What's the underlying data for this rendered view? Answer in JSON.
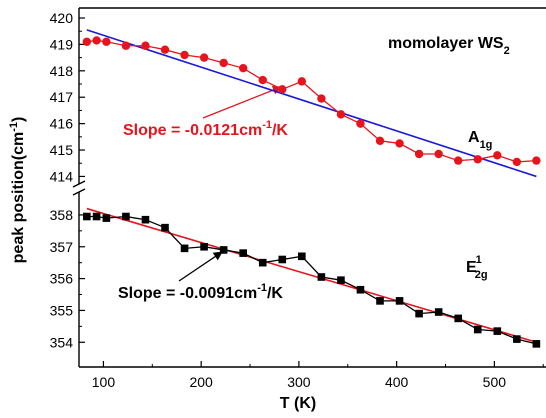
{
  "chart_data": {
    "type": "scatter",
    "xlabel": "T (K)",
    "ylabel": "peak position(cm",
    "ylabel_sup": "-1",
    "ylabel_end": ")",
    "xlim": [
      75,
      560
    ],
    "x_ticks": [
      100,
      200,
      300,
      400,
      500
    ],
    "broken_y_axis": true,
    "upper_panel": {
      "ylim": [
        413.6,
        420.0
      ],
      "y_ticks": [
        414,
        415,
        416,
        417,
        418,
        419,
        420
      ],
      "series": [
        {
          "name": "A1g",
          "color": "#e8141d",
          "marker": "circle",
          "x": [
            83,
            93,
            103,
            123,
            143,
            163,
            183,
            203,
            223,
            243,
            263,
            283,
            303,
            323,
            343,
            363,
            383,
            403,
            423,
            443,
            463,
            483,
            503,
            523,
            543
          ],
          "y": [
            419.1,
            419.15,
            419.1,
            418.95,
            418.95,
            418.8,
            418.6,
            418.5,
            418.3,
            418.1,
            417.65,
            417.3,
            417.6,
            416.95,
            416.35,
            416.0,
            415.35,
            415.25,
            414.85,
            414.85,
            414.6,
            414.65,
            414.8,
            414.55,
            414.6
          ]
        }
      ],
      "fit": {
        "color": "#1a1adb",
        "x": [
          83,
          543
        ],
        "y": [
          419.55,
          414.0
        ]
      },
      "annotations": {
        "title_main": "momolayer WS",
        "title_sub": "2",
        "peak_main": "A",
        "peak_sub": "1g",
        "slope_text": "Slope = -0.0121cm",
        "slope_sup": "-1",
        "slope_end": "/K",
        "color": "#e8141d"
      }
    },
    "lower_panel": {
      "ylim": [
        353.6,
        358.5
      ],
      "y_ticks": [
        354,
        355,
        356,
        357,
        358
      ],
      "series": [
        {
          "name": "E2g1",
          "color": "#000000",
          "marker": "square",
          "x": [
            83,
            93,
            103,
            123,
            143,
            163,
            183,
            203,
            223,
            243,
            263,
            283,
            303,
            323,
            343,
            363,
            383,
            403,
            423,
            443,
            463,
            483,
            503,
            523,
            543
          ],
          "y": [
            357.95,
            357.95,
            357.9,
            357.95,
            357.85,
            357.6,
            356.95,
            357.0,
            356.9,
            356.8,
            356.5,
            356.6,
            356.7,
            356.05,
            355.95,
            355.65,
            355.3,
            355.3,
            354.9,
            354.95,
            354.75,
            354.4,
            354.35,
            354.1,
            353.95
          ]
        }
      ],
      "fit": {
        "color": "#e8141d",
        "x": [
          83,
          543
        ],
        "y": [
          358.2,
          354.0
        ]
      },
      "annotations": {
        "peak_main": "E",
        "peak_sup": "1",
        "peak_sub": "2g",
        "slope_text": "Slope = -0.0091cm",
        "slope_sup": "-1",
        "slope_end": "/K",
        "color": "#000000"
      }
    }
  }
}
